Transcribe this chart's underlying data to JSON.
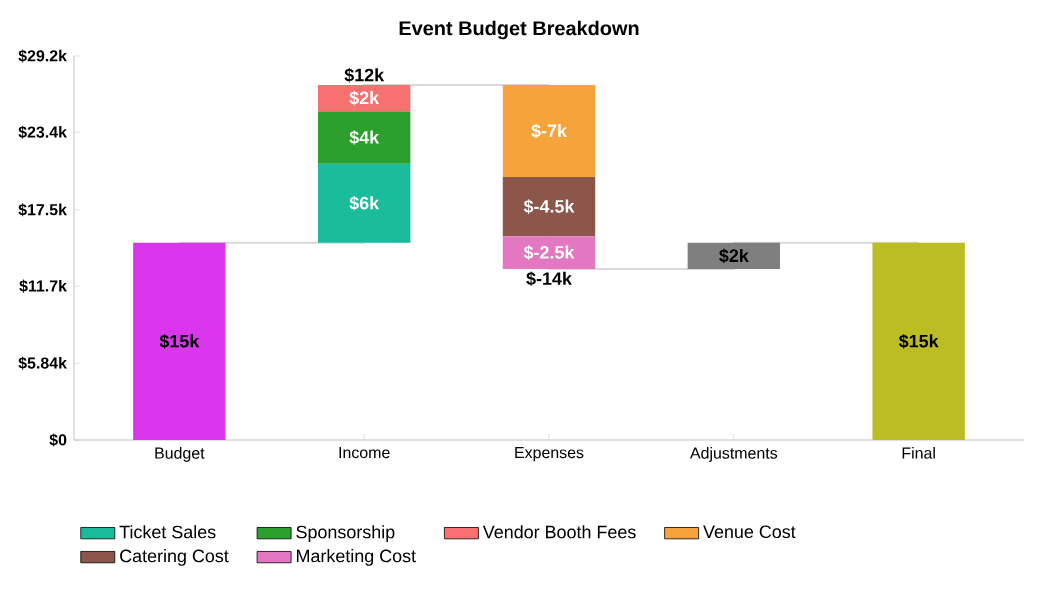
{
  "chart_data": {
    "type": "bar",
    "title": "Event Budget Breakdown",
    "categories": [
      "Budget",
      "Income",
      "Expenses",
      "Adjustments",
      "Final"
    ],
    "ylim": [
      0,
      29200
    ],
    "yticks": [
      {
        "value": 0,
        "label": "$0"
      },
      {
        "value": 5840,
        "label": "$5.84k"
      },
      {
        "value": 11700,
        "label": "$11.7k"
      },
      {
        "value": 17500,
        "label": "$17.5k"
      },
      {
        "value": 23400,
        "label": "$23.4k"
      },
      {
        "value": 29200,
        "label": "$29.2k"
      }
    ],
    "series": [
      {
        "type": "step",
        "color": "#d9d9d9",
        "values": [
          15000,
          27000,
          13000,
          15000,
          15000
        ]
      },
      {
        "color": "#d936ee",
        "values": [
          15000,
          null,
          null,
          null,
          null
        ],
        "base": [
          0,
          null,
          null,
          null,
          null
        ],
        "value_labels": [
          "$15k",
          null,
          null,
          null,
          null
        ]
      },
      {
        "name": "Ticket Sales",
        "color": "#1abc9c",
        "values": [
          null,
          6000,
          null,
          null,
          null
        ],
        "base": [
          null,
          15000,
          null,
          null,
          null
        ],
        "value_labels": [
          null,
          "$6k",
          null,
          null,
          null
        ]
      },
      {
        "name": "Sponsorship",
        "color": "#2ca02c",
        "values": [
          null,
          4000,
          null,
          null,
          null
        ],
        "base": [
          null,
          21000,
          null,
          null,
          null
        ],
        "value_labels": [
          null,
          "$4k",
          null,
          null,
          null
        ]
      },
      {
        "name": "Vendor Booth Fees",
        "color": "#f87171",
        "values": [
          null,
          2000,
          null,
          null,
          null
        ],
        "base": [
          null,
          25000,
          null,
          null,
          null
        ],
        "value_labels": [
          null,
          "$2k",
          null,
          null,
          null
        ]
      },
      {
        "name": "Venue Cost",
        "color": "#f5a33a",
        "values": [
          null,
          null,
          -7000,
          null,
          null
        ],
        "base": [
          null,
          null,
          27000,
          null,
          null
        ],
        "value_labels": [
          null,
          null,
          "$-7k",
          null,
          null
        ]
      },
      {
        "name": "Catering Cost",
        "color": "#8c564b",
        "values": [
          null,
          null,
          -4500,
          null,
          null
        ],
        "base": [
          null,
          null,
          20000,
          null,
          null
        ],
        "value_labels": [
          null,
          null,
          "$-4.5k",
          null,
          null
        ]
      },
      {
        "name": "Marketing Cost",
        "color": "#e377c2",
        "values": [
          null,
          null,
          -2500,
          null,
          null
        ],
        "base": [
          null,
          null,
          15500,
          null,
          null
        ],
        "value_labels": [
          null,
          null,
          "$-2.5k",
          null,
          null
        ]
      },
      {
        "color": "#7f7f7f",
        "values": [
          null,
          null,
          null,
          2000,
          null
        ],
        "base": [
          null,
          null,
          null,
          13000,
          null
        ],
        "value_labels": [
          null,
          null,
          null,
          "$2k",
          null
        ]
      },
      {
        "color": "#bcbd22",
        "values": [
          null,
          null,
          null,
          null,
          15000
        ],
        "base": [
          null,
          null,
          null,
          null,
          0
        ],
        "value_labels": [
          null,
          null,
          null,
          null,
          "$15k"
        ]
      }
    ],
    "totals": [
      null,
      "$12k",
      "$-14k",
      null,
      null
    ],
    "legend": "bottom left"
  }
}
